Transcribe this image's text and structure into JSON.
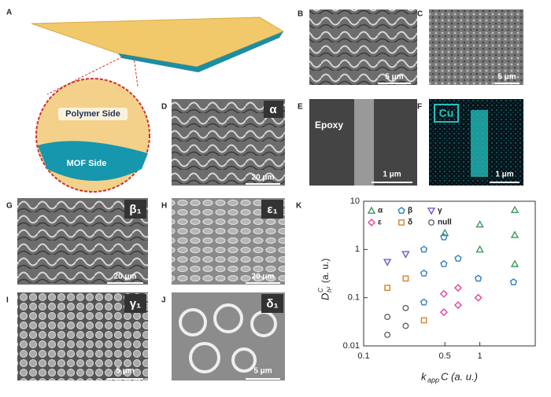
{
  "panels": {
    "labels": [
      "A",
      "B",
      "C",
      "D",
      "E",
      "F",
      "G",
      "H",
      "I",
      "J",
      "K"
    ],
    "a_zoom": {
      "top": "Polymer Side",
      "bottom": "MOF Side"
    },
    "b_scale": "5 μm",
    "c_scale": "5 μm",
    "d_tag": "α",
    "d_scale": "20 μm",
    "e_tag": "Epoxy",
    "e_scale": "1 μm",
    "f_tag": "Cu",
    "f_scale": "1 μm",
    "g_tag": "β₁",
    "g_scale": "20 μm",
    "h_tag": "ε₁",
    "h_scale": "20 μm",
    "i_tag": "γ₁",
    "i_scale": "5 μm",
    "j_tag": "δ₁",
    "j_scale": "5 μm"
  },
  "chart_data": {
    "type": "scatter",
    "x_label": {
      "base": "k",
      "sub": "app",
      "rest": "C (a. u.)"
    },
    "y_label": {
      "base": "D",
      "sup": "C",
      "sub": "h²",
      "unit": "(a. u.)"
    },
    "log_x": true,
    "log_y": true,
    "xlim": [
      0.1,
      3
    ],
    "ylim": [
      0.01,
      10
    ],
    "xticks": [
      0.1,
      0.5,
      1
    ],
    "yticks": [
      0.01,
      0.1,
      1,
      10
    ],
    "legend": "top-left",
    "series": [
      {
        "name": "α",
        "color": "#3a9a5b",
        "marker": "triangle",
        "x": [
          0.5,
          1,
          1,
          2,
          2,
          2
        ],
        "values": [
          2.2,
          3.3,
          1.0,
          6.6,
          2.0,
          0.5
        ]
      },
      {
        "name": "β",
        "color": "#2f7fc1",
        "marker": "pentagon",
        "x": [
          0.33,
          0.33,
          0.33,
          0.49,
          0.49,
          0.65,
          0.97,
          1.95
        ],
        "values": [
          1.0,
          0.32,
          0.08,
          1.8,
          0.5,
          0.65,
          0.25,
          0.21
        ]
      },
      {
        "name": "γ",
        "color": "#6a5acd",
        "marker": "invtriangle",
        "x": [
          0.16,
          0.23
        ],
        "values": [
          0.55,
          0.8
        ]
      },
      {
        "name": "ε",
        "color": "#e0449a",
        "marker": "diamond",
        "x": [
          0.49,
          0.49,
          0.65,
          0.65,
          0.97
        ],
        "values": [
          0.12,
          0.05,
          0.16,
          0.07,
          0.1
        ]
      },
      {
        "name": "δ",
        "color": "#d9822b",
        "marker": "square",
        "x": [
          0.16,
          0.23,
          0.33
        ],
        "values": [
          0.16,
          0.25,
          0.034
        ]
      },
      {
        "name": "null",
        "color": "#666666",
        "marker": "circle",
        "x": [
          0.16,
          0.16,
          0.23,
          0.23
        ],
        "values": [
          0.04,
          0.017,
          0.061,
          0.026
        ]
      }
    ]
  }
}
